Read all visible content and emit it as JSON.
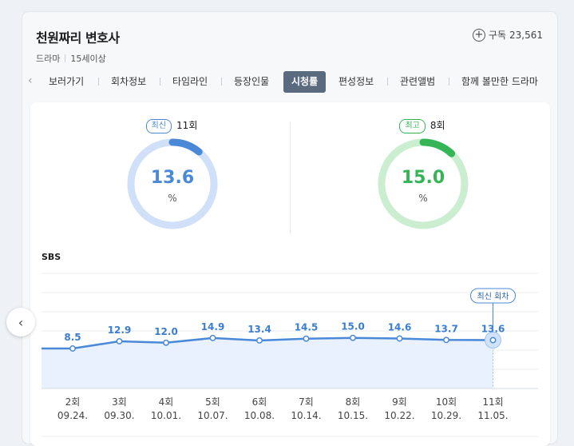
{
  "program": {
    "title": "천원짜리 변호사",
    "genre": "드라마",
    "rating_age": "15세이상",
    "subscribe_label": "구독",
    "subscribers": "23,561"
  },
  "tabs": [
    "보러가기",
    "회차정보",
    "타임라인",
    "등장인물",
    "시청률",
    "편성정보",
    "관련앨범",
    "함께 볼만한 드라마"
  ],
  "active_tab": "시청률",
  "latest": {
    "badge": "최신",
    "episode": "11회",
    "value": "13.6",
    "unit": "%",
    "color": "#4a88d8"
  },
  "best": {
    "badge": "최고",
    "episode": "8회",
    "value": "15.0",
    "unit": "%",
    "color": "#35b556"
  },
  "chart_label": "SBS",
  "latest_episode_tag": "최신 회차",
  "chart_data": {
    "type": "line",
    "categories": [
      "2회",
      "3회",
      "4회",
      "5회",
      "6회",
      "7회",
      "8회",
      "9회",
      "10회",
      "11회"
    ],
    "dates": [
      "09.24.",
      "09.30.",
      "10.01.",
      "10.07.",
      "10.08.",
      "10.14.",
      "10.15.",
      "10.22.",
      "10.29.",
      "11.05."
    ],
    "values": [
      8.5,
      12.9,
      12.0,
      14.9,
      13.4,
      14.5,
      15.0,
      14.6,
      13.7,
      13.6
    ],
    "labels": [
      "8.5",
      "12.9",
      "12.0",
      "14.9",
      "13.4",
      "14.5",
      "15.0",
      "14.6",
      "13.7",
      "13.6"
    ],
    "title": "SBS",
    "ylim": [
      0,
      15
    ],
    "grid": true
  }
}
